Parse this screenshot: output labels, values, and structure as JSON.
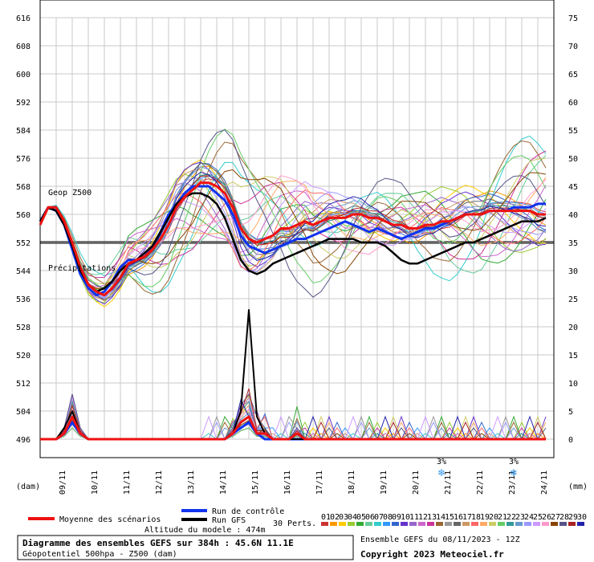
{
  "chart_data": {
    "type": "line",
    "title": "Diagramme des ensembles GEFS sur 384h : 45.6N 11.1E",
    "subtitle": "Géopotentiel 500hpa - Z500 (dam)",
    "run_info": "Ensemble GEFS du 08/11/2023 - 12Z",
    "copyright": "Copyright 2023 Meteociel.fr",
    "altitude": "Altitude du modele : 474m",
    "left_unit": "(dam)",
    "right_unit": "(mm)",
    "left_ticks": [
      616,
      608,
      600,
      592,
      584,
      576,
      568,
      560,
      552,
      544,
      536,
      528,
      520,
      512,
      504,
      496
    ],
    "right_ticks": [
      75,
      70,
      65,
      60,
      55,
      50,
      45,
      40,
      35,
      30,
      25,
      20,
      15,
      10,
      5,
      0
    ],
    "x_ticks": [
      "09/11",
      "10/11",
      "11/11",
      "12/11",
      "13/11",
      "14/11",
      "15/11",
      "16/11",
      "17/11",
      "18/11",
      "19/11",
      "20/11",
      "21/11",
      "22/11",
      "23/11",
      "24/11"
    ],
    "ylim_left": [
      496,
      616
    ],
    "ylim_right": [
      0,
      75
    ],
    "x_step_hours": 6,
    "z500_labels": {
      "geop": "Geop Z500",
      "precip": "Précipitations"
    },
    "reference_line": 552,
    "snow_markers": [
      {
        "day_index": 12.5,
        "label": "3%"
      },
      {
        "day_index": 14.75,
        "label": "3%"
      }
    ],
    "series": [
      {
        "name": "Moyenne des scénarios",
        "color": "#ee1111",
        "z500": [
          557,
          562,
          562,
          558,
          552,
          545,
          540,
          538,
          537,
          539,
          542,
          546,
          547,
          548,
          550,
          553,
          557,
          562,
          565,
          567,
          569,
          569,
          568,
          566,
          562,
          556,
          553,
          552,
          553,
          554,
          556,
          556,
          557,
          558,
          557,
          558,
          559,
          559,
          559,
          560,
          560,
          559,
          559,
          558,
          557,
          557,
          556,
          556,
          557,
          557,
          558,
          558,
          559,
          560,
          560,
          560,
          561,
          561,
          561,
          561,
          561,
          561,
          560,
          560
        ],
        "precip": [
          0,
          0,
          0,
          1,
          4,
          1,
          0,
          0,
          0,
          0,
          0,
          0,
          0,
          0,
          0,
          0,
          0,
          0,
          0,
          0,
          0,
          0,
          0,
          0,
          1,
          3,
          4,
          1,
          1,
          0,
          0,
          0,
          1,
          0,
          0,
          0,
          0,
          0,
          0,
          0,
          0,
          0,
          0,
          0,
          0,
          0,
          0,
          0,
          0,
          0,
          0,
          0,
          0,
          0,
          0,
          0,
          0,
          0,
          0,
          0,
          0,
          0,
          0,
          0
        ]
      },
      {
        "name": "Run de contrôle",
        "color": "#1133ee",
        "z500": [
          558,
          562,
          561,
          557,
          550,
          543,
          539,
          537,
          538,
          541,
          545,
          547,
          547,
          548,
          551,
          555,
          560,
          563,
          566,
          568,
          568,
          568,
          566,
          564,
          560,
          554,
          551,
          550,
          549,
          550,
          551,
          552,
          553,
          553,
          554,
          555,
          556,
          557,
          558,
          557,
          556,
          555,
          556,
          555,
          554,
          553,
          554,
          555,
          556,
          556,
          557,
          558,
          559,
          560,
          560,
          560,
          561,
          561,
          561,
          562,
          562,
          562,
          563,
          563
        ],
        "precip": [
          0,
          0,
          0,
          1,
          3,
          1,
          0,
          0,
          0,
          0,
          0,
          0,
          0,
          0,
          0,
          0,
          0,
          0,
          0,
          0,
          0,
          0,
          0,
          0,
          1,
          2,
          3,
          1,
          0,
          0,
          0,
          0,
          0,
          0,
          0,
          0,
          0,
          0,
          0,
          0,
          0,
          0,
          0,
          0,
          0,
          0,
          0,
          0,
          0,
          0,
          0,
          0,
          0,
          0,
          0,
          0,
          0,
          0,
          0,
          0,
          0,
          0,
          0,
          0
        ]
      },
      {
        "name": "Run GFS",
        "color": "#000000",
        "z500": [
          558,
          562,
          561,
          557,
          551,
          544,
          540,
          538,
          539,
          541,
          544,
          546,
          547,
          549,
          551,
          555,
          559,
          563,
          565,
          566,
          566,
          565,
          563,
          559,
          553,
          547,
          544,
          543,
          544,
          546,
          547,
          548,
          549,
          550,
          551,
          552,
          553,
          553,
          553,
          553,
          552,
          552,
          552,
          551,
          549,
          547,
          546,
          546,
          547,
          548,
          549,
          550,
          551,
          552,
          552,
          553,
          554,
          555,
          556,
          557,
          558,
          558,
          558,
          559
        ],
        "precip": [
          0,
          0,
          0,
          2,
          5,
          1,
          0,
          0,
          0,
          0,
          0,
          0,
          0,
          0,
          0,
          0,
          0,
          0,
          0,
          0,
          0,
          0,
          0,
          0,
          1,
          5,
          23,
          4,
          1,
          0,
          0,
          0,
          0,
          0,
          0,
          0,
          0,
          0,
          0,
          0,
          0,
          0,
          0,
          0,
          0,
          0,
          0,
          0,
          0,
          0,
          0,
          0,
          0,
          0,
          0,
          0,
          0,
          0,
          0,
          0,
          0,
          0,
          0,
          0
        ]
      }
    ],
    "legend": {
      "mean": "Moyenne des scénarios",
      "control": "Run de contrôle",
      "gfs": "Run GFS",
      "perts": "30 Perts.",
      "pert_ids": [
        "01",
        "02",
        "03",
        "04",
        "05",
        "06",
        "07",
        "08",
        "09",
        "10",
        "11",
        "12",
        "13",
        "14",
        "15",
        "16",
        "17",
        "18",
        "19",
        "20",
        "21",
        "22",
        "23",
        "24",
        "25",
        "26",
        "27",
        "28",
        "29",
        "30"
      ],
      "pert_colors": [
        "#cc3333",
        "#ff9900",
        "#ffcc00",
        "#99cc33",
        "#33aa33",
        "#66cc99",
        "#33cccc",
        "#3399ff",
        "#3366cc",
        "#6633cc",
        "#9966cc",
        "#cc66cc",
        "#cc3399",
        "#996633",
        "#999999",
        "#666666",
        "#cc9966",
        "#ff6666",
        "#ffaa66",
        "#cccc66",
        "#66cc66",
        "#339999",
        "#6699cc",
        "#9999ff",
        "#cc99ff",
        "#ff99cc",
        "#884400",
        "#555588",
        "#aa2222",
        "#2222aa"
      ]
    }
  }
}
